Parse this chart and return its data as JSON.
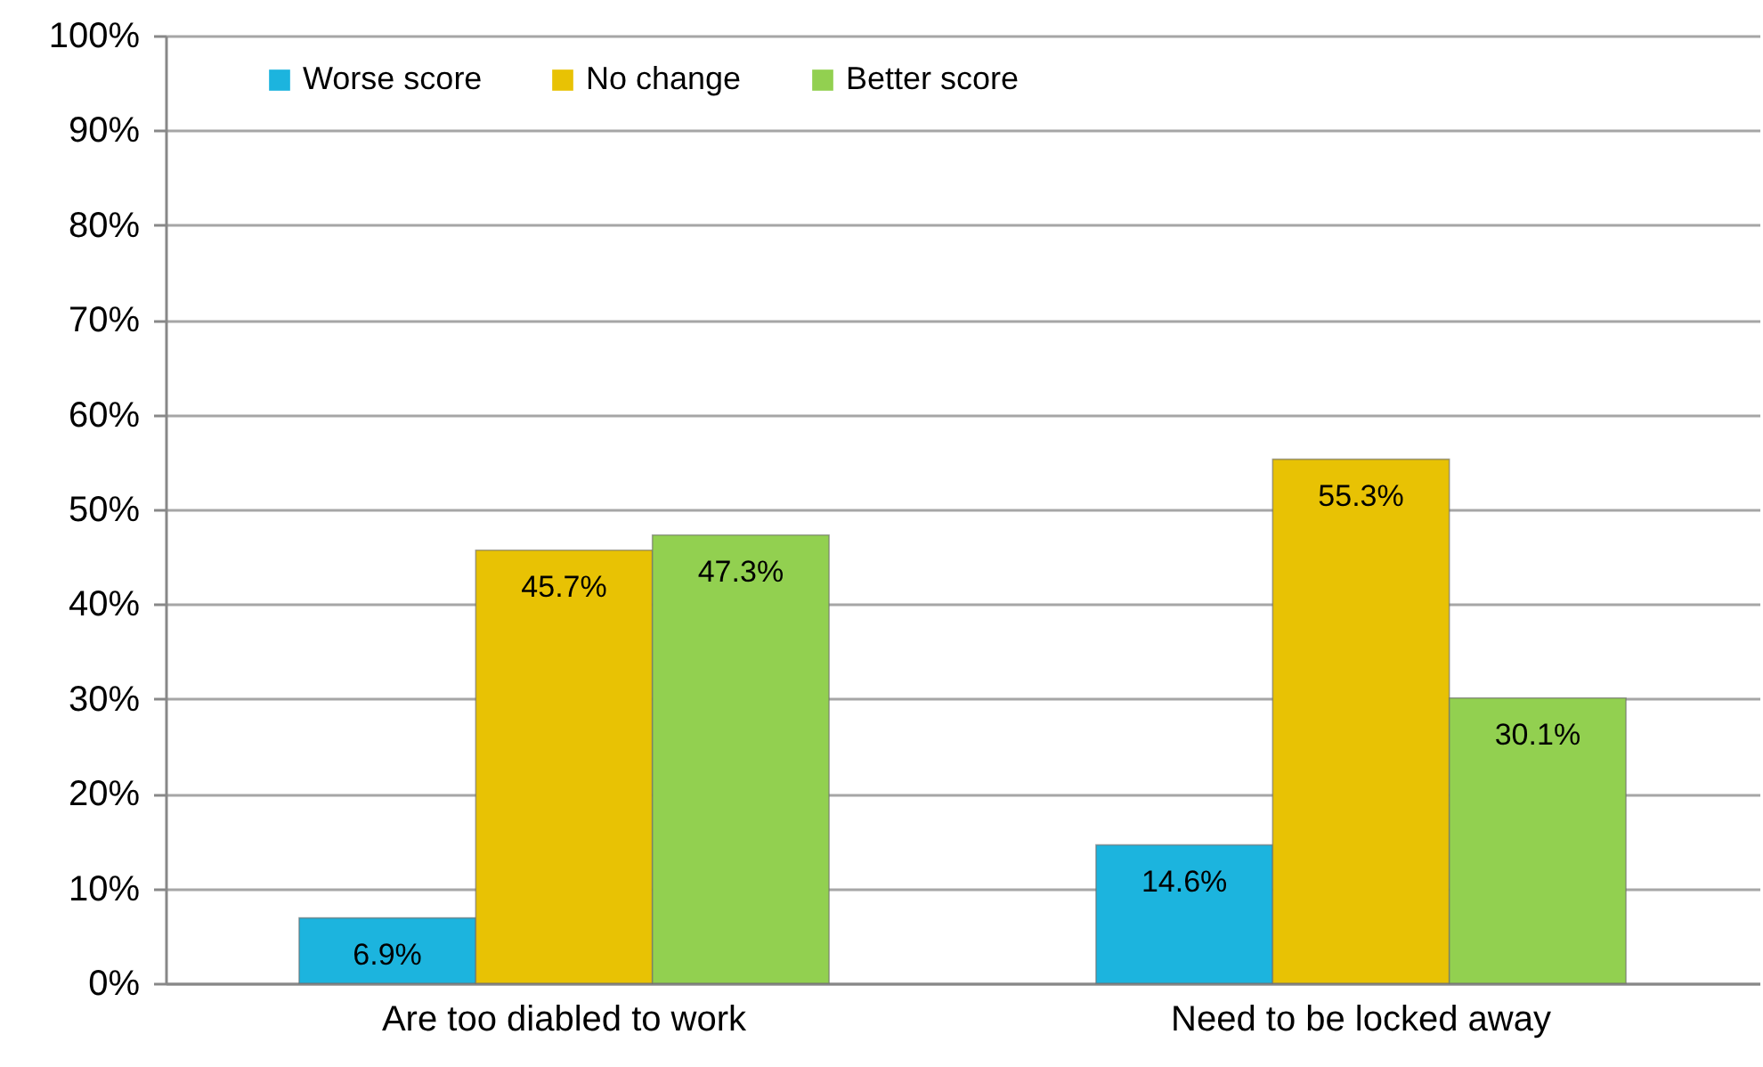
{
  "chart_data": {
    "type": "bar",
    "categories": [
      "Are too diabled to work",
      "Need to be locked away"
    ],
    "series": [
      {
        "name": "Worse score",
        "color": "#1cb4de",
        "values": [
          6.9,
          14.6
        ],
        "value_labels": [
          "6.9%",
          "14.6%"
        ]
      },
      {
        "name": "No change",
        "color": "#e8c204",
        "values": [
          45.7,
          55.3
        ],
        "value_labels": [
          "45.7%",
          "55.3%"
        ]
      },
      {
        "name": "Better score",
        "color": "#92d050",
        "values": [
          47.3,
          30.1
        ],
        "value_labels": [
          "47.3%",
          "30.1%"
        ]
      }
    ],
    "ylim": [
      0,
      100
    ],
    "yticks": [
      {
        "value": 0,
        "label": "0%"
      },
      {
        "value": 10,
        "label": "10%"
      },
      {
        "value": 20,
        "label": "20%"
      },
      {
        "value": 30,
        "label": "30%"
      },
      {
        "value": 40,
        "label": "40%"
      },
      {
        "value": 50,
        "label": "50%"
      },
      {
        "value": 60,
        "label": "60%"
      },
      {
        "value": 70,
        "label": "70%"
      },
      {
        "value": 80,
        "label": "80%"
      },
      {
        "value": 90,
        "label": "90%"
      },
      {
        "value": 100,
        "label": "100%"
      }
    ],
    "grid": "y",
    "legend": "top left"
  }
}
